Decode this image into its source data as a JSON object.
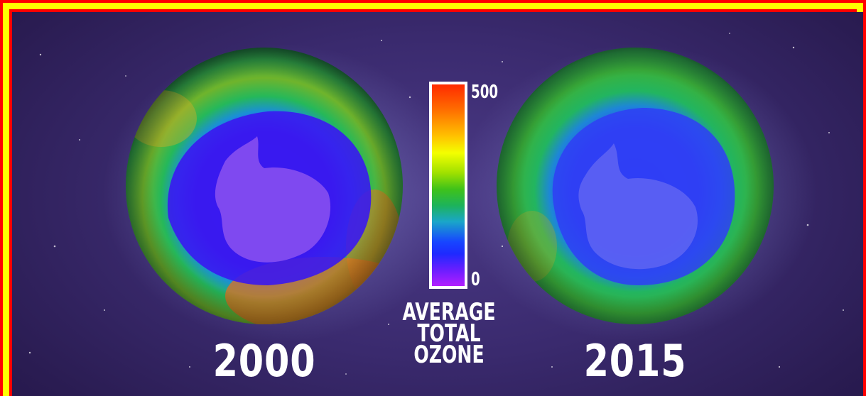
{
  "left_globe": {
    "year": "2000"
  },
  "right_globe": {
    "year": "2015"
  },
  "legend": {
    "max_label": "500",
    "min_label": "0",
    "title_lines": [
      "AVERAGE",
      "TOTAL",
      "OZONE"
    ]
  },
  "colors": {
    "outer_border": "#ff0000",
    "inner_border": "#ffff00",
    "background": "#3a2a6e"
  }
}
